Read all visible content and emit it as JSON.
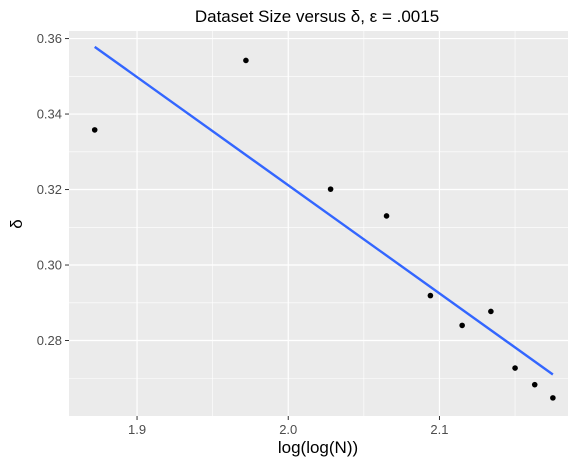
{
  "chart_data": {
    "type": "scatter",
    "title": "Dataset Size versus δ, ε = .0015",
    "xlabel": "log(log(N))",
    "ylabel": "δ",
    "xlim": [
      1.855,
      2.185
    ],
    "ylim": [
      0.26,
      0.362
    ],
    "x_ticks": [
      1.9,
      2.0,
      2.1
    ],
    "x_tick_labels": [
      "1.9",
      "2.0",
      "2.1"
    ],
    "y_ticks": [
      0.28,
      0.3,
      0.32,
      0.34,
      0.36
    ],
    "y_tick_labels": [
      "0.28",
      "0.30",
      "0.32",
      "0.34",
      "0.36"
    ],
    "grid": true,
    "panel_background": "#EBEBEB",
    "point_color": "#000000",
    "fit_color": "#3366FF",
    "points": [
      {
        "x": 1.872,
        "y": 0.3358
      },
      {
        "x": 1.972,
        "y": 0.3542
      },
      {
        "x": 2.028,
        "y": 0.3201
      },
      {
        "x": 2.065,
        "y": 0.313
      },
      {
        "x": 2.094,
        "y": 0.2919
      },
      {
        "x": 2.115,
        "y": 0.284
      },
      {
        "x": 2.134,
        "y": 0.2877
      },
      {
        "x": 2.15,
        "y": 0.2727
      },
      {
        "x": 2.163,
        "y": 0.2683
      },
      {
        "x": 2.175,
        "y": 0.2648
      }
    ],
    "fit_line": {
      "type": "linear",
      "x": [
        1.872,
        2.175
      ],
      "y": [
        0.3578,
        0.271
      ]
    }
  }
}
